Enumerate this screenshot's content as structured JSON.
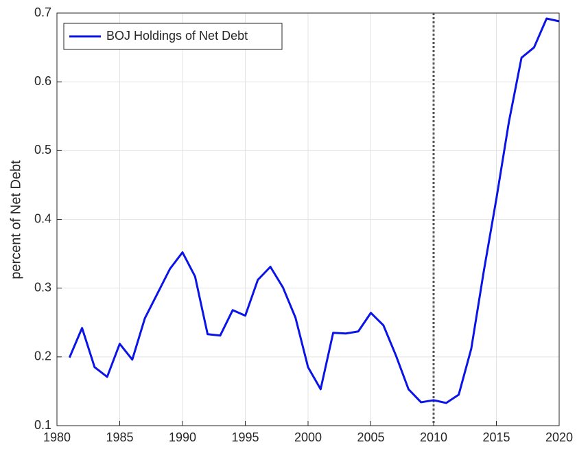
{
  "chart_data": {
    "type": "line",
    "ylabel": "percent of Net Debt",
    "x": [
      1981,
      1982,
      1983,
      1984,
      1985,
      1986,
      1987,
      1988,
      1989,
      1990,
      1991,
      1992,
      1993,
      1994,
      1995,
      1996,
      1997,
      1998,
      1999,
      2000,
      2001,
      2002,
      2003,
      2004,
      2005,
      2006,
      2007,
      2008,
      2009,
      2010,
      2011,
      2012,
      2013,
      2014,
      2015,
      2016,
      2017,
      2018,
      2019,
      2020
    ],
    "series": [
      {
        "name": "BOJ Holdings of Net Debt",
        "color": "#0a14e6",
        "values": [
          0.199,
          0.242,
          0.185,
          0.171,
          0.219,
          0.196,
          0.256,
          0.292,
          0.328,
          0.352,
          0.317,
          0.233,
          0.231,
          0.268,
          0.26,
          0.312,
          0.331,
          0.301,
          0.257,
          0.185,
          0.153,
          0.235,
          0.234,
          0.237,
          0.264,
          0.246,
          0.202,
          0.153,
          0.134,
          0.137,
          0.133,
          0.145,
          0.212,
          0.325,
          0.43,
          0.542,
          0.635,
          0.65,
          0.692,
          0.688
        ]
      }
    ],
    "xlim": [
      1980,
      2020
    ],
    "xticks": [
      1980,
      1985,
      1990,
      1995,
      2000,
      2005,
      2010,
      2015,
      2020
    ],
    "ylim": [
      0.1,
      0.7
    ],
    "yticks": [
      0.1,
      0.2,
      0.3,
      0.4,
      0.5,
      0.6,
      0.7
    ],
    "grid": true,
    "legend": "upper left",
    "vline": 2010
  }
}
